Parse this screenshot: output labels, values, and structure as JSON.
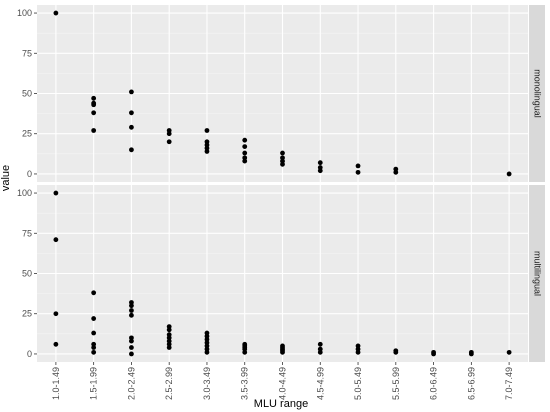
{
  "chart_data": {
    "type": "scatter",
    "xlabel": "MLU range",
    "ylabel": "value",
    "categories": [
      "1.0-1.49",
      "1.5-1.99",
      "2.0-2.49",
      "2.5-2.99",
      "3.0-3.49",
      "3.5-3.99",
      "4.0-4.49",
      "4.5-4.99",
      "5.0-5.49",
      "5.5-5.99",
      "6.0-6.49",
      "6.5-6.99",
      "7.0-7.49"
    ],
    "ylim": [
      -5,
      105
    ],
    "yticks": [
      0,
      25,
      50,
      75,
      100
    ],
    "grid": true,
    "legend": "none",
    "point_color": "#000000",
    "panel_background": "#ebebeb",
    "strip_background": "#d9d9d9",
    "facets": [
      {
        "label": "monolingual",
        "points": [
          [
            "1.0-1.49",
            100
          ],
          [
            "1.5-1.99",
            47
          ],
          [
            "1.5-1.99",
            44
          ],
          [
            "1.5-1.99",
            43
          ],
          [
            "1.5-1.99",
            38
          ],
          [
            "1.5-1.99",
            27
          ],
          [
            "2.0-2.49",
            51
          ],
          [
            "2.0-2.49",
            38
          ],
          [
            "2.0-2.49",
            29
          ],
          [
            "2.0-2.49",
            15
          ],
          [
            "2.5-2.99",
            27
          ],
          [
            "2.5-2.99",
            25
          ],
          [
            "2.5-2.99",
            20
          ],
          [
            "3.0-3.49",
            27
          ],
          [
            "3.0-3.49",
            20
          ],
          [
            "3.0-3.49",
            18
          ],
          [
            "3.0-3.49",
            16
          ],
          [
            "3.0-3.49",
            14
          ],
          [
            "3.5-3.99",
            21
          ],
          [
            "3.5-3.99",
            17
          ],
          [
            "3.5-3.99",
            13
          ],
          [
            "3.5-3.99",
            10
          ],
          [
            "3.5-3.99",
            8
          ],
          [
            "4.0-4.49",
            13
          ],
          [
            "4.0-4.49",
            10
          ],
          [
            "4.0-4.49",
            8
          ],
          [
            "4.0-4.49",
            6
          ],
          [
            "4.5-4.99",
            7
          ],
          [
            "4.5-4.99",
            4
          ],
          [
            "4.5-4.99",
            2
          ],
          [
            "5.0-5.49",
            5
          ],
          [
            "5.0-5.49",
            1
          ],
          [
            "5.5-5.99",
            3
          ],
          [
            "5.5-5.99",
            1
          ],
          [
            "7.0-7.49",
            0
          ]
        ]
      },
      {
        "label": "multilingual",
        "points": [
          [
            "1.0-1.49",
            100
          ],
          [
            "1.0-1.49",
            71
          ],
          [
            "1.0-1.49",
            25
          ],
          [
            "1.0-1.49",
            6
          ],
          [
            "1.5-1.99",
            38
          ],
          [
            "1.5-1.99",
            22
          ],
          [
            "1.5-1.99",
            13
          ],
          [
            "1.5-1.99",
            6
          ],
          [
            "1.5-1.99",
            4
          ],
          [
            "1.5-1.99",
            1
          ],
          [
            "2.0-2.49",
            32
          ],
          [
            "2.0-2.49",
            30
          ],
          [
            "2.0-2.49",
            27
          ],
          [
            "2.0-2.49",
            24
          ],
          [
            "2.0-2.49",
            10
          ],
          [
            "2.0-2.49",
            8
          ],
          [
            "2.0-2.49",
            4
          ],
          [
            "2.0-2.49",
            0
          ],
          [
            "2.5-2.99",
            17
          ],
          [
            "2.5-2.99",
            15
          ],
          [
            "2.5-2.99",
            12
          ],
          [
            "2.5-2.99",
            10
          ],
          [
            "2.5-2.99",
            8
          ],
          [
            "2.5-2.99",
            6
          ],
          [
            "2.5-2.99",
            4
          ],
          [
            "3.0-3.49",
            13
          ],
          [
            "3.0-3.49",
            11
          ],
          [
            "3.0-3.49",
            9
          ],
          [
            "3.0-3.49",
            7
          ],
          [
            "3.0-3.49",
            5
          ],
          [
            "3.0-3.49",
            3
          ],
          [
            "3.0-3.49",
            1
          ],
          [
            "3.5-3.99",
            6
          ],
          [
            "3.5-3.99",
            5
          ],
          [
            "3.5-3.99",
            4
          ],
          [
            "3.5-3.99",
            3
          ],
          [
            "3.5-3.99",
            1
          ],
          [
            "4.0-4.49",
            5
          ],
          [
            "4.0-4.49",
            4
          ],
          [
            "4.0-4.49",
            3
          ],
          [
            "4.0-4.49",
            2
          ],
          [
            "4.0-4.49",
            1
          ],
          [
            "4.5-4.99",
            6
          ],
          [
            "4.5-4.99",
            3
          ],
          [
            "4.5-4.99",
            1
          ],
          [
            "5.0-5.49",
            5
          ],
          [
            "5.0-5.49",
            3
          ],
          [
            "5.0-5.49",
            1
          ],
          [
            "5.5-5.99",
            2
          ],
          [
            "5.5-5.99",
            1
          ],
          [
            "6.0-6.49",
            1
          ],
          [
            "6.0-6.49",
            0
          ],
          [
            "6.5-6.99",
            1
          ],
          [
            "6.5-6.99",
            0
          ],
          [
            "7.0-7.49",
            1
          ]
        ]
      }
    ]
  }
}
